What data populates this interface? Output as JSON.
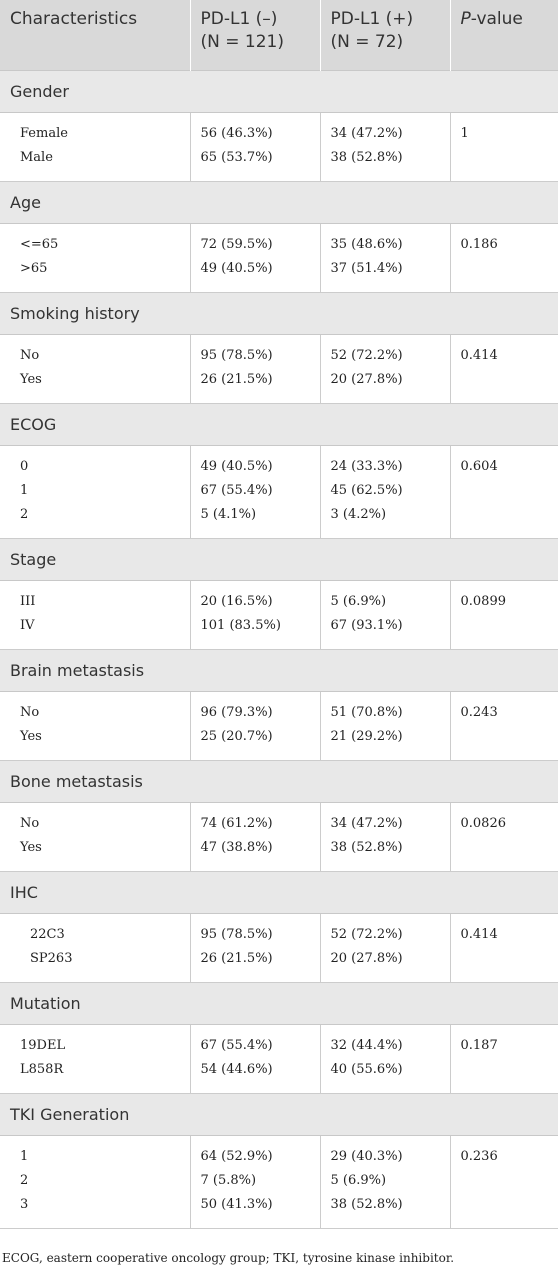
{
  "header": {
    "columns": [
      {
        "lines": [
          "Characteristics"
        ]
      },
      {
        "lines": [
          "PD-L1 (–)",
          "(N = 121)"
        ]
      },
      {
        "lines": [
          "PD-L1 (+)",
          "(N = 72)"
        ]
      },
      {
        "italic": "P",
        "rest": "-value"
      }
    ]
  },
  "sections": [
    {
      "title": "Gender",
      "rows": [
        [
          "Female",
          "56 (46.3%)",
          "34 (47.2%)"
        ],
        [
          "Male",
          "65 (53.7%)",
          "38 (52.8%)"
        ]
      ],
      "p": "1"
    },
    {
      "title": "Age",
      "rows": [
        [
          "<=65",
          "72 (59.5%)",
          "35 (48.6%)"
        ],
        [
          ">65",
          "49 (40.5%)",
          "37 (51.4%)"
        ]
      ],
      "p": "0.186"
    },
    {
      "title": "Smoking history",
      "rows": [
        [
          "No",
          "95 (78.5%)",
          "52 (72.2%)"
        ],
        [
          "Yes",
          "26 (21.5%)",
          "20 (27.8%)"
        ]
      ],
      "p": "0.414"
    },
    {
      "title": "ECOG",
      "rows": [
        [
          "0",
          "49 (40.5%)",
          "24 (33.3%)"
        ],
        [
          "1",
          "67 (55.4%)",
          "45 (62.5%)"
        ],
        [
          "2",
          "5 (4.1%)",
          "3 (4.2%)"
        ]
      ],
      "p": "0.604"
    },
    {
      "title": "Stage",
      "rows": [
        [
          "III",
          "20 (16.5%)",
          "5 (6.9%)"
        ],
        [
          "IV",
          "101 (83.5%)",
          "67 (93.1%)"
        ]
      ],
      "p": "0.0899"
    },
    {
      "title": "Brain metastasis",
      "rows": [
        [
          "No",
          "96 (79.3%)",
          "51 (70.8%)"
        ],
        [
          "Yes",
          "25 (20.7%)",
          "21 (29.2%)"
        ]
      ],
      "p": "0.243"
    },
    {
      "title": "Bone metastasis",
      "rows": [
        [
          "No",
          "74 (61.2%)",
          "34 (47.2%)"
        ],
        [
          "Yes",
          "47 (38.8%)",
          "38 (52.8%)"
        ]
      ],
      "p": "0.0826"
    },
    {
      "title": "IHC",
      "rows": [
        [
          "22C3",
          "95 (78.5%)",
          "52 (72.2%)"
        ],
        [
          "SP263",
          "26 (21.5%)",
          "20 (27.8%)"
        ]
      ],
      "p": "0.414"
    },
    {
      "title": "Mutation",
      "rows": [
        [
          "19DEL",
          "67 (55.4%)",
          "32 (44.4%)"
        ],
        [
          "L858R",
          "54 (44.6%)",
          "40 (55.6%)"
        ]
      ],
      "p": "0.187"
    },
    {
      "title": "TKI Generation",
      "rows": [
        [
          "1",
          "64 (52.9%)",
          "29 (40.3%)"
        ],
        [
          "2",
          "7 (5.8%)",
          "5 (6.9%)"
        ],
        [
          "3",
          "50 (41.3%)",
          "38 (52.8%)"
        ]
      ],
      "p": "0.236"
    }
  ],
  "footnote": "ECOG, eastern cooperative oncology group; TKI, tyrosine kinase inhibitor."
}
